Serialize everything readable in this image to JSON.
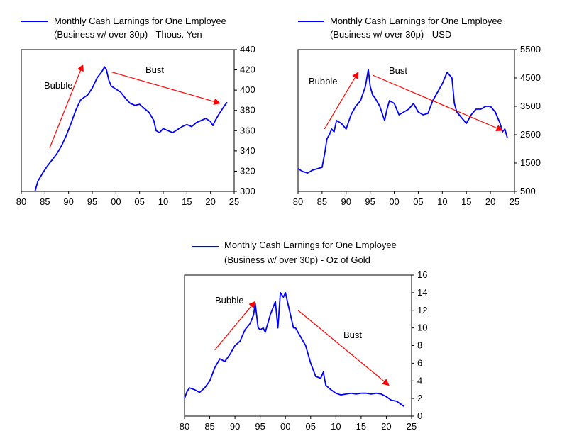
{
  "colors": {
    "series": "#0000ff",
    "annotation": "#ff0000",
    "frame": "#000000"
  },
  "chart_data": [
    {
      "type": "line",
      "legend": "top",
      "grid": false,
      "title_lines": [
        "Monthly Cash Earnings for One Employee",
        "(Business w/ over 30p) - Thous. Yen"
      ],
      "x_ticks": [
        "80",
        "85",
        "90",
        "95",
        "00",
        "05",
        "10",
        "15",
        "20",
        "25"
      ],
      "x_range": [
        1980,
        2025
      ],
      "y_ticks": [
        "300",
        "320",
        "340",
        "360",
        "380",
        "400",
        "420",
        "440"
      ],
      "y_range": [
        300,
        440
      ],
      "series": [
        {
          "name": "Monthly Cash Earnings for One Employee (Business w/ over 30p) - Thous. Yen",
          "x": [
            1982.9,
            1983.5,
            1984.5,
            1985.5,
            1986.5,
            1987.5,
            1988.5,
            1989.5,
            1990.5,
            1991.5,
            1992.5,
            1993.3,
            1994,
            1995,
            1996,
            1997,
            1997.6,
            1998,
            1998.5,
            1999,
            2000,
            2001,
            2002,
            2003,
            2004,
            2005,
            2006,
            2007,
            2008,
            2008.5,
            2009.2,
            2010,
            2011,
            2012,
            2013,
            2014,
            2015,
            2016,
            2017,
            2018,
            2019,
            2020,
            2020.5,
            2021,
            2022,
            2023,
            2023.5
          ],
          "y": [
            300,
            310,
            318,
            325,
            331,
            337,
            345,
            355,
            367,
            380,
            390,
            393,
            395,
            402,
            412,
            418,
            423,
            420,
            410,
            404,
            401,
            398,
            392,
            387,
            385,
            386,
            382,
            378,
            370,
            360,
            358,
            362,
            360,
            358,
            361,
            364,
            366,
            364,
            368,
            370,
            372,
            369,
            365,
            370,
            378,
            385,
            388
          ]
        }
      ],
      "annotations": [
        {
          "label": "Bubble",
          "from": [
            1986,
            343
          ],
          "to": [
            1993,
            425
          ]
        },
        {
          "label": "Bust",
          "from": [
            1999,
            418
          ],
          "to": [
            2022,
            387
          ]
        }
      ]
    },
    {
      "type": "line",
      "legend": "top",
      "grid": false,
      "title_lines": [
        "Monthly Cash Earnings for One Employee",
        "(Business w/ over 30p) - USD"
      ],
      "x_ticks": [
        "80",
        "85",
        "90",
        "95",
        "00",
        "05",
        "10",
        "15",
        "20",
        "25"
      ],
      "x_range": [
        1980,
        2025
      ],
      "y_ticks": [
        "500",
        "1500",
        "2500",
        "3500",
        "4500",
        "5500"
      ],
      "y_range": [
        500,
        5500
      ],
      "series": [
        {
          "name": "Monthly Cash Earnings for One Employee (Business w/ over 30p) - USD",
          "x": [
            1980,
            1981,
            1982,
            1983,
            1984,
            1985,
            1985.6,
            1986,
            1986.5,
            1987,
            1987.5,
            1988,
            1989,
            1990,
            1991,
            1992,
            1993,
            1994,
            1994.6,
            1995,
            1995.5,
            1996,
            1997,
            1998,
            1998.5,
            1999,
            2000,
            2001,
            2002,
            2003,
            2004,
            2005,
            2006,
            2007,
            2008,
            2009,
            2010,
            2011,
            2011.5,
            2012,
            2012.5,
            2013,
            2014,
            2015,
            2016,
            2017,
            2018,
            2019,
            2020,
            2021,
            2022,
            2022.5,
            2023,
            2023.5
          ],
          "y": [
            1300,
            1200,
            1150,
            1250,
            1300,
            1350,
            1900,
            2350,
            2500,
            2700,
            2600,
            3000,
            2900,
            2700,
            3200,
            3500,
            3700,
            4200,
            4800,
            4200,
            3900,
            3800,
            3500,
            3000,
            3400,
            3700,
            3600,
            3200,
            3300,
            3400,
            3600,
            3300,
            3200,
            3250,
            3700,
            4000,
            4300,
            4700,
            4600,
            4500,
            3600,
            3300,
            3100,
            2900,
            3200,
            3400,
            3400,
            3500,
            3500,
            3300,
            2900,
            2600,
            2700,
            2400
          ]
        }
      ],
      "annotations": [
        {
          "label": "Bubble",
          "from": [
            1985.5,
            2700
          ],
          "to": [
            1992.5,
            4700
          ]
        },
        {
          "label": "Bust",
          "from": [
            1995.5,
            4600
          ],
          "to": [
            2022.5,
            2650
          ]
        }
      ]
    },
    {
      "type": "line",
      "legend": "top",
      "grid": false,
      "title_lines": [
        "Monthly Cash Earnings for One Employee",
        "(Business w/ over 30p) - Oz of Gold"
      ],
      "x_ticks": [
        "80",
        "85",
        "90",
        "95",
        "00",
        "05",
        "10",
        "15",
        "20",
        "25"
      ],
      "x_range": [
        1980,
        2025
      ],
      "y_ticks": [
        "0",
        "2",
        "4",
        "6",
        "8",
        "10",
        "12",
        "14",
        "16"
      ],
      "y_range": [
        0,
        16
      ],
      "series": [
        {
          "name": "Monthly Cash Earnings for One Employee (Business w/ over 30p) - Oz of Gold",
          "x": [
            1980,
            1980.5,
            1981,
            1982,
            1983,
            1984,
            1985,
            1986,
            1987,
            1988,
            1989,
            1990,
            1991,
            1992,
            1993,
            1993.7,
            1994,
            1994.6,
            1995,
            1995.6,
            1996,
            1997,
            1998,
            1998.5,
            1999,
            1999.6,
            2000,
            2001,
            2001.6,
            2002,
            2003,
            2004,
            2005,
            2006,
            2007,
            2007.5,
            2008,
            2009,
            2010,
            2011,
            2012,
            2013,
            2014,
            2015,
            2016,
            2017,
            2018,
            2019,
            2020,
            2021,
            2022,
            2023,
            2023.5
          ],
          "y": [
            2.0,
            2.8,
            3.2,
            3.0,
            2.7,
            3.2,
            4.0,
            5.5,
            6.5,
            6.2,
            7.0,
            8.0,
            8.5,
            9.8,
            10.5,
            11.5,
            12.8,
            10.0,
            9.8,
            10.0,
            9.5,
            11.5,
            13.0,
            10.0,
            14.0,
            13.5,
            14.0,
            11.5,
            10.0,
            10.0,
            9.0,
            8.0,
            6.0,
            4.5,
            4.3,
            5.0,
            3.5,
            3.0,
            2.6,
            2.4,
            2.5,
            2.6,
            2.5,
            2.6,
            2.6,
            2.5,
            2.6,
            2.5,
            2.2,
            1.8,
            1.7,
            1.3,
            1.1
          ]
        }
      ],
      "annotations": [
        {
          "label": "Bubble",
          "from": [
            1986,
            7.5
          ],
          "to": [
            1994,
            13
          ]
        },
        {
          "label": "Bust",
          "from": [
            2002.5,
            12
          ],
          "to": [
            2020.5,
            3.5
          ]
        }
      ]
    }
  ]
}
